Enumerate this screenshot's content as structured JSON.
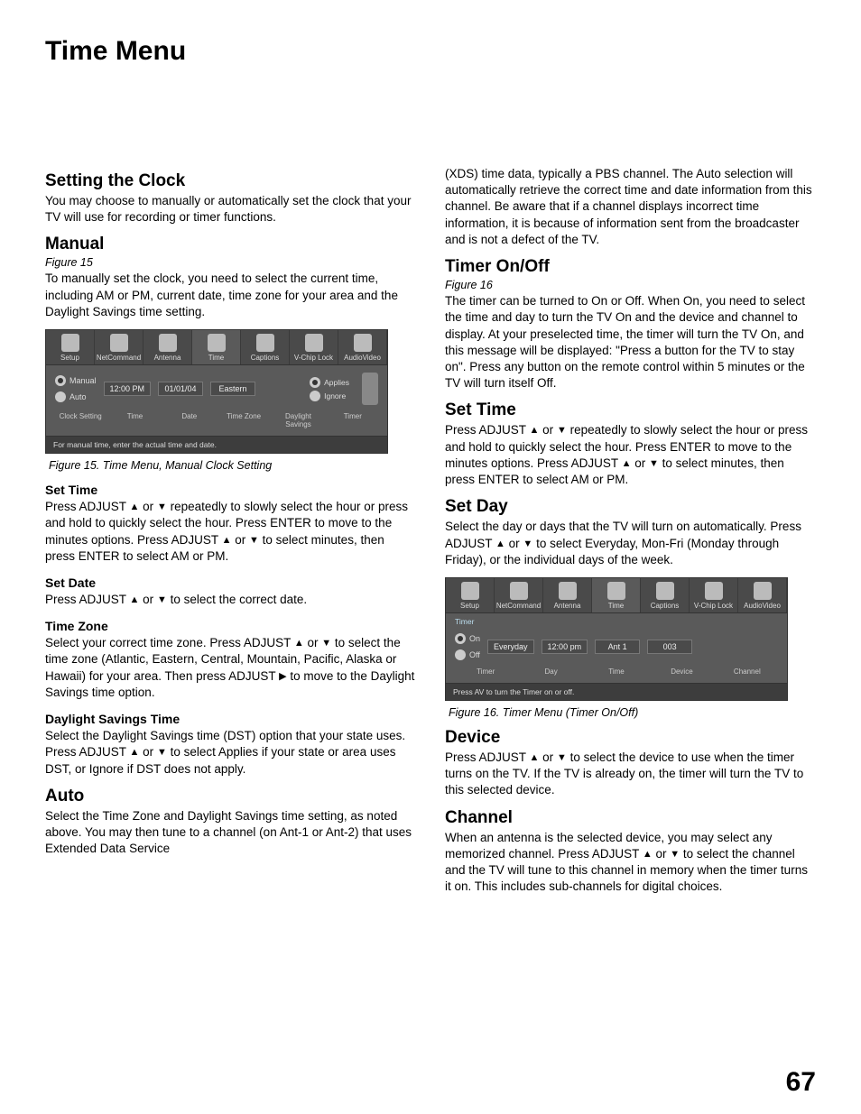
{
  "page_title": "Time Menu",
  "page_number": "67",
  "triangles": {
    "up": "▲",
    "down": "▼",
    "right": "▶"
  },
  "left": {
    "setting_clock": {
      "heading": "Setting the Clock",
      "body": "You may choose to manually or automatically set the clock that your TV will use for recording or timer functions."
    },
    "manual": {
      "heading": "Manual",
      "figref": "Figure 15",
      "body": "To manually set the clock, you need to select  the current time, including AM or PM,  current date, time zone for your area and the Daylight Savings time setting."
    },
    "fig15": {
      "tabs": [
        "Setup",
        "NetCommand",
        "Antenna",
        "Time",
        "Captions",
        "V-Chip Lock",
        "AudioVideo"
      ],
      "manual_label": "Manual",
      "auto_label": "Auto",
      "time_val": "12:00 PM",
      "date_val": "01/01/04",
      "tz_val": "Eastern",
      "applies": "Applies",
      "ignore": "Ignore",
      "row_labels": [
        "Clock Setting",
        "Time",
        "Date",
        "Time Zone",
        "Daylight Savings",
        "Timer"
      ],
      "hint": "For manual time, enter the actual time and date.",
      "caption": "Figure 15. Time Menu, Manual Clock Setting"
    },
    "set_time": {
      "heading": "Set Time",
      "body_parts": [
        "Press ADJUST ",
        "UP",
        " or ",
        "DOWN",
        "  repeatedly to slowly select the hour or press and hold to quickly select the hour.  Press ENTER to move to the minutes options.  Press ADJUST ",
        "UP",
        " or ",
        "DOWN",
        " to select minutes, then press ENTER to select AM or PM."
      ]
    },
    "set_date": {
      "heading": "Set Date",
      "body_parts": [
        "Press ADJUST ",
        "UP",
        " or ",
        "DOWN",
        " to select the correct date."
      ]
    },
    "time_zone": {
      "heading": "Time Zone",
      "body_parts": [
        "Select your correct time zone.  Press ADJUST ",
        "UP",
        " or ",
        "DOWN",
        " to select the time zone (Atlantic, Eastern, Central, Mountain, Pacific, Alaska or Hawaii) for your area.  Then press ADJUST ",
        "RIGHT",
        " to move to the Daylight Savings time option."
      ]
    },
    "dst": {
      "heading": "Daylight Savings Time",
      "body_parts": [
        "Select the Daylight Savings time (DST) option that your state uses.  Press ADJUST ",
        "UP",
        " or ",
        "DOWN",
        " to select Applies if your state or area uses DST, or Ignore if DST does not apply."
      ]
    },
    "auto": {
      "heading": "Auto",
      "body": "Select the Time Zone and Daylight Savings time setting, as noted above.  You may then tune to a channel (on Ant-1 or Ant-2) that uses Extended Data Service"
    }
  },
  "right": {
    "xds": "(XDS) time data, typically a PBS channel.  The Auto selection will automatically retrieve the correct time and date information from this channel. Be aware that if a channel displays incorrect time information, it is because of information sent from the broadcaster and is not a defect of the TV.",
    "timer": {
      "heading": "Timer On/Off",
      "figref": "Figure 16",
      "body": "The timer can be turned to On or Off.  When On, you need to select the time and day to turn the TV On and the device and channel to display.  At your preselected time, the timer will turn the TV On, and this message will be displayed: \"Press a button for the TV to stay on\".  Press any button on the remote control within 5 minutes or the TV will turn itself Off."
    },
    "set_time": {
      "heading": "Set Time",
      "body_parts": [
        "Press ADJUST ",
        "UP",
        " or ",
        "DOWN",
        "  repeatedly to slowly select the hour or press and hold to quickly select the hour.  Press ENTER to move to the minutes options.  Press ADJUST ",
        "UP",
        " or ",
        "DOWN",
        " to select minutes, then press ENTER to select AM or PM."
      ]
    },
    "set_day": {
      "heading": "Set Day",
      "body_parts": [
        "Select the day or days that the TV will turn on automatically.  Press ADJUST ",
        "UP",
        " or ",
        "DOWN",
        " to select Everyday, Mon-Fri (Monday through Friday), or the individual days of the week."
      ]
    },
    "fig16": {
      "tabs": [
        "Setup",
        "NetCommand",
        "Antenna",
        "Time",
        "Captions",
        "V-Chip Lock",
        "AudioVideo"
      ],
      "timer_label": "Timer",
      "on_label": "On",
      "off_label": "Off",
      "day_val": "Everyday",
      "time_val": "12:00 pm",
      "device_val": "Ant 1",
      "channel_val": "003",
      "row_labels": [
        "Timer",
        "Day",
        "Time",
        "Device",
        "Channel"
      ],
      "hint": "Press AV to turn the Timer on or off.",
      "caption": "Figure 16. Timer Menu (Timer On/Off)"
    },
    "device": {
      "heading": "Device",
      "body_parts": [
        "Press ADJUST ",
        "UP",
        " or ",
        "DOWN",
        " to select the device to use when the timer turns on the TV.  If the TV is already on, the timer will turn the TV to this selected device."
      ]
    },
    "channel": {
      "heading": "Channel",
      "body_parts": [
        "When an antenna is the selected device, you may select any memorized channel.  Press ADJUST  ",
        "UP",
        " or ",
        "DOWN",
        " to select the channel and the TV will tune to this channel in memory when the timer turns it on.  This includes sub-channels for digital choices."
      ]
    }
  }
}
